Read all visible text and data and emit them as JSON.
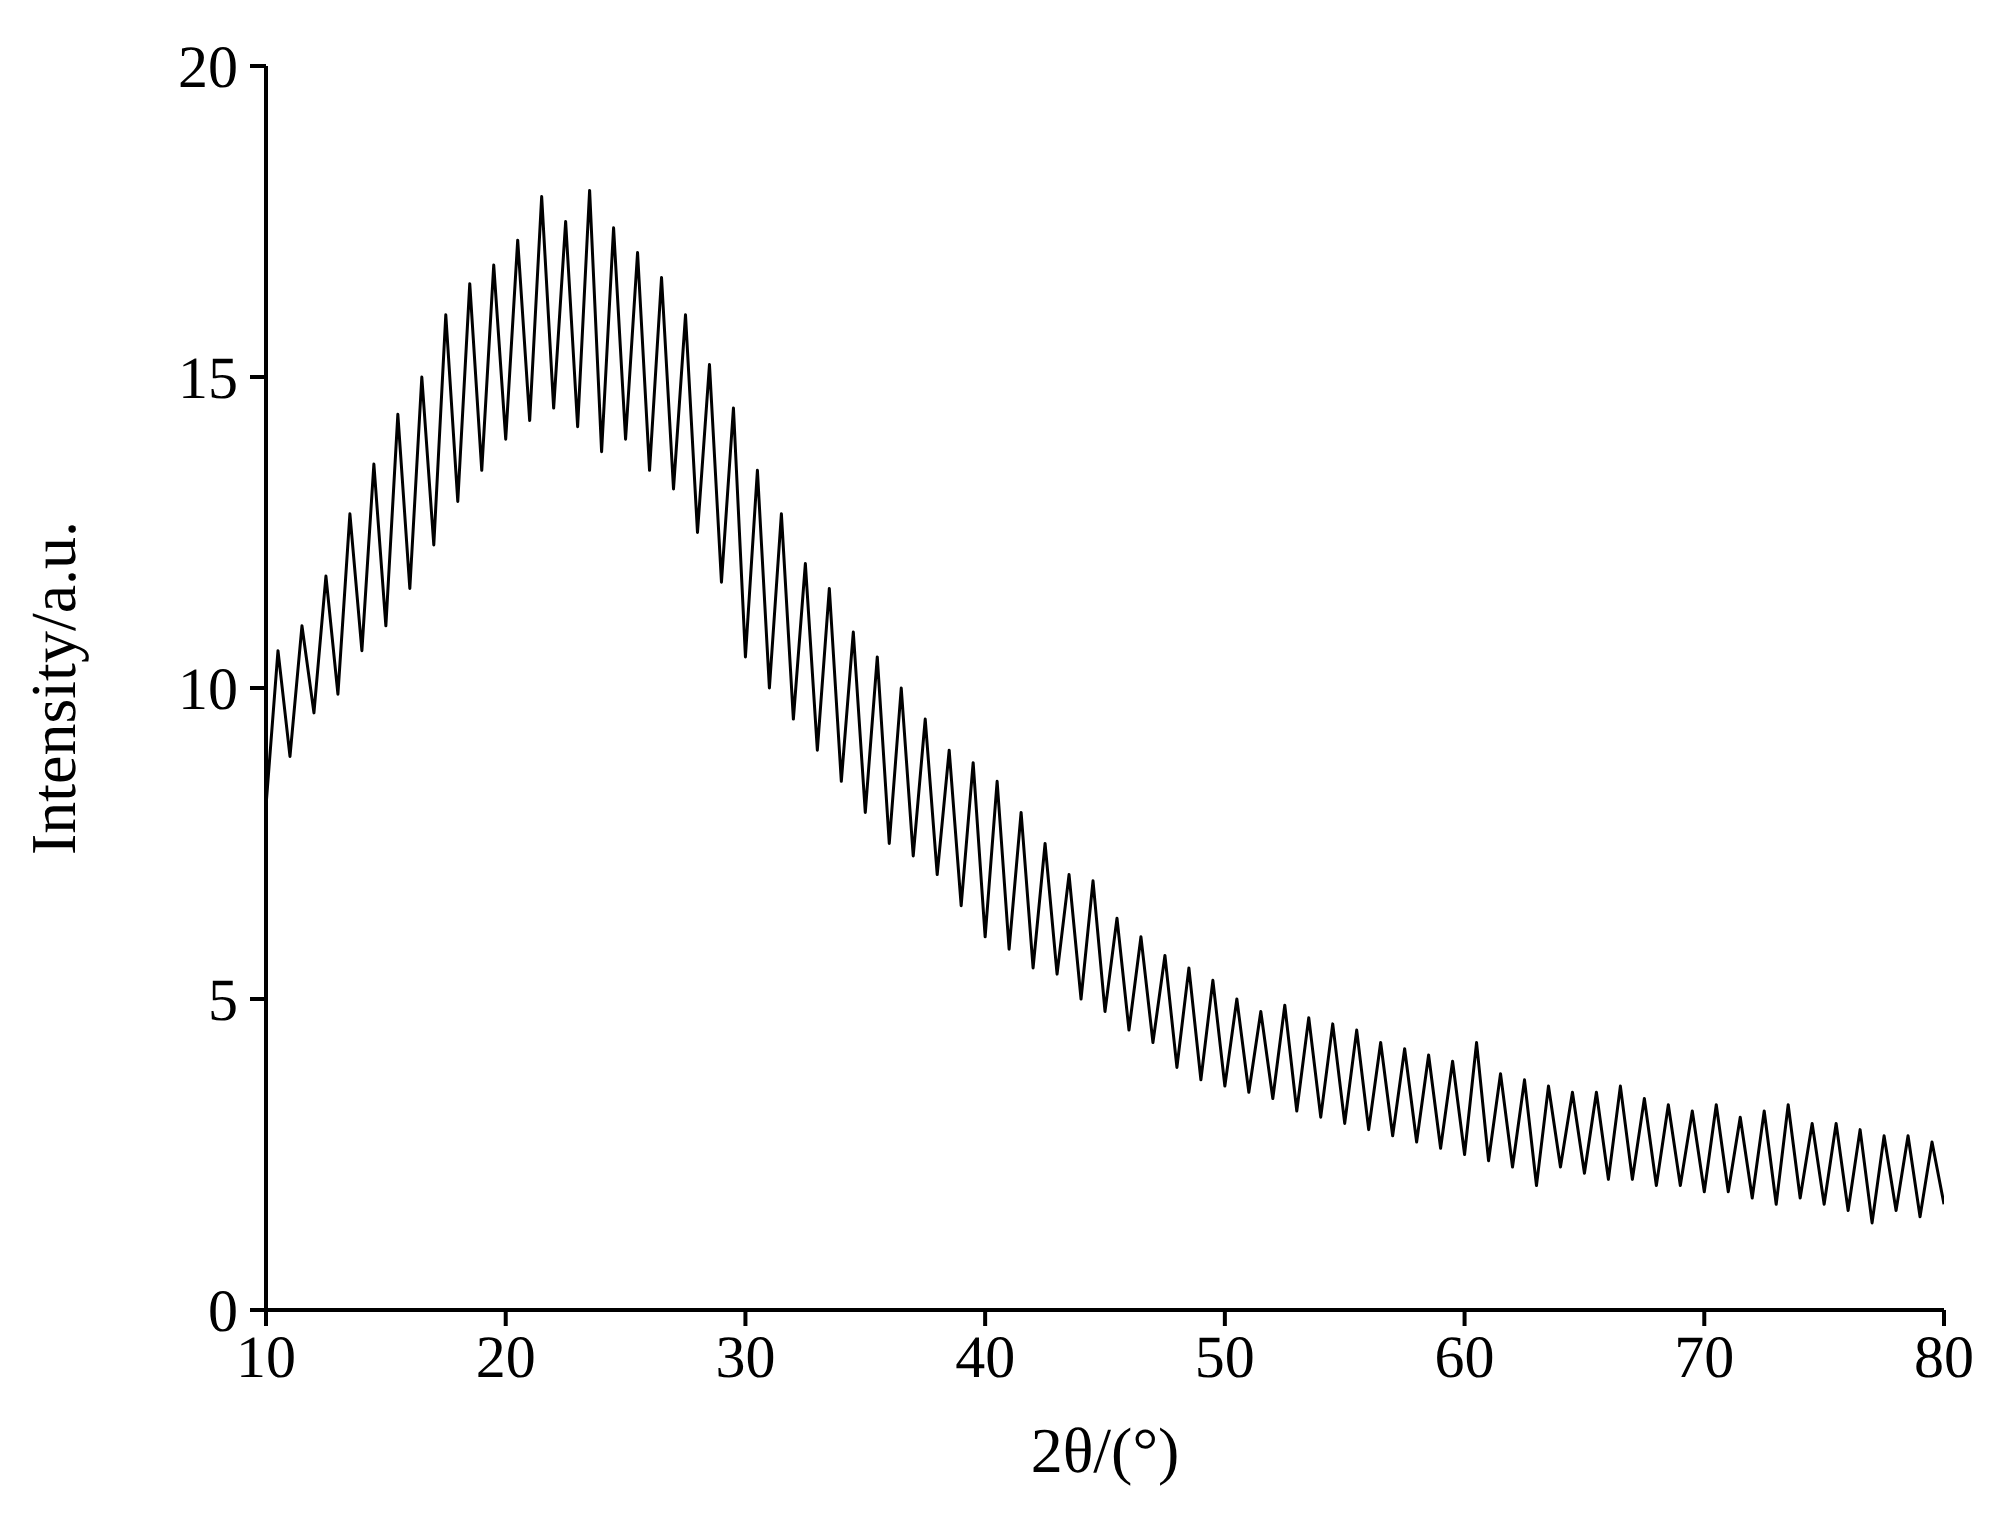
{
  "chart_data": {
    "type": "line",
    "xlabel": "2θ/(°)",
    "ylabel": "Intensity/a.u.",
    "xlim": [
      10,
      80
    ],
    "xticks": [
      10,
      20,
      30,
      40,
      50,
      60,
      70,
      80
    ],
    "ylim": [
      0,
      20
    ],
    "yticks": [
      0,
      5,
      10,
      15,
      20
    ],
    "grid": false,
    "legend": false,
    "marker": "none",
    "line_style": "solid",
    "series": [
      {
        "color": "#000000",
        "x": [
          10,
          10.5,
          11,
          11.5,
          12,
          12.5,
          13,
          13.5,
          14,
          14.5,
          15,
          15.5,
          16,
          16.5,
          17,
          17.5,
          18,
          18.5,
          19,
          19.5,
          20,
          20.5,
          21,
          21.5,
          22,
          22.5,
          23,
          23.5,
          24,
          24.5,
          25,
          25.5,
          26,
          26.5,
          27,
          27.5,
          28,
          28.5,
          29,
          29.5,
          30,
          30.5,
          31,
          31.5,
          32,
          32.5,
          33,
          33.5,
          34,
          34.5,
          35,
          35.5,
          36,
          36.5,
          37,
          37.5,
          38,
          38.5,
          39,
          39.5,
          40,
          40.5,
          41,
          41.5,
          42,
          42.5,
          43,
          43.5,
          44,
          44.5,
          45,
          45.5,
          46,
          46.5,
          47,
          47.5,
          48,
          48.5,
          49,
          49.5,
          50,
          50.5,
          51,
          51.5,
          52,
          52.5,
          53,
          53.5,
          54,
          54.5,
          55,
          55.5,
          56,
          56.5,
          57,
          57.5,
          58,
          58.5,
          59,
          59.5,
          60,
          60.5,
          61,
          61.5,
          62,
          62.5,
          63,
          63.5,
          64,
          64.5,
          65,
          65.5,
          66,
          66.5,
          67,
          67.5,
          68,
          68.5,
          69,
          69.5,
          70,
          70.5,
          71,
          71.5,
          72,
          72.5,
          73,
          73.5,
          74,
          74.5,
          75,
          75.5,
          76,
          76.5,
          77,
          77.5,
          78,
          78.5,
          79,
          79.5,
          80
        ],
        "values": [
          8.1,
          10.6,
          8.9,
          11.0,
          9.6,
          11.8,
          9.9,
          12.8,
          10.6,
          13.6,
          11.0,
          14.4,
          11.6,
          15.0,
          12.3,
          16.0,
          13.0,
          16.5,
          13.5,
          16.8,
          14.0,
          17.2,
          14.3,
          17.9,
          14.5,
          17.5,
          14.2,
          18.0,
          13.8,
          17.4,
          14.0,
          17.0,
          13.5,
          16.6,
          13.2,
          16.0,
          12.5,
          15.2,
          11.7,
          14.5,
          10.5,
          13.5,
          10.0,
          12.8,
          9.5,
          12.0,
          9.0,
          11.6,
          8.5,
          10.9,
          8.0,
          10.5,
          7.5,
          10.0,
          7.3,
          9.5,
          7.0,
          9.0,
          6.5,
          8.8,
          6.0,
          8.5,
          5.8,
          8.0,
          5.5,
          7.5,
          5.4,
          7.0,
          5.0,
          6.9,
          4.8,
          6.3,
          4.5,
          6.0,
          4.3,
          5.7,
          3.9,
          5.5,
          3.7,
          5.3,
          3.6,
          5.0,
          3.5,
          4.8,
          3.4,
          4.9,
          3.2,
          4.7,
          3.1,
          4.6,
          3.0,
          4.5,
          2.9,
          4.3,
          2.8,
          4.2,
          2.7,
          4.1,
          2.6,
          4.0,
          2.5,
          4.3,
          2.4,
          3.8,
          2.3,
          3.7,
          2.0,
          3.6,
          2.3,
          3.5,
          2.2,
          3.5,
          2.1,
          3.6,
          2.1,
          3.4,
          2.0,
          3.3,
          2.0,
          3.2,
          1.9,
          3.3,
          1.9,
          3.1,
          1.8,
          3.2,
          1.7,
          3.3,
          1.8,
          3.0,
          1.7,
          3.0,
          1.6,
          2.9,
          1.4,
          2.8,
          1.6,
          2.8,
          1.5,
          2.7,
          1.7
        ]
      }
    ]
  }
}
